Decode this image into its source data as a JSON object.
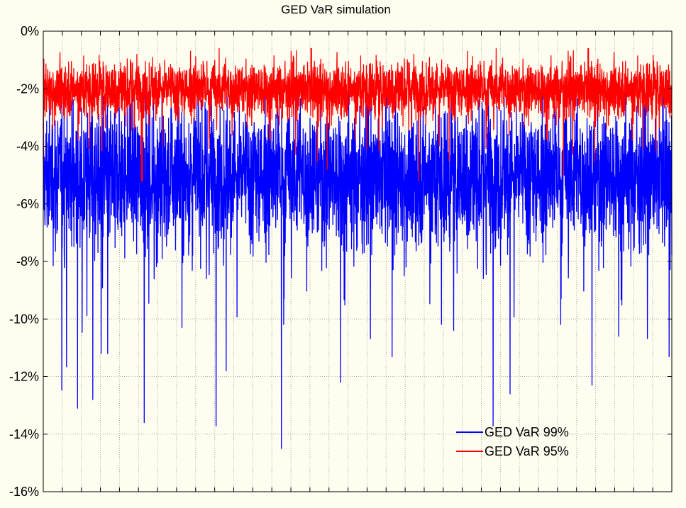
{
  "chart_data": {
    "type": "line",
    "title": "GED VaR simulation",
    "xlabel": "",
    "ylabel": "",
    "ylim": [
      -16,
      0
    ],
    "y_ticks": [
      0,
      -2,
      -4,
      -6,
      -8,
      -10,
      -12,
      -14,
      -16
    ],
    "y_tick_labels": [
      "0%",
      "-2%",
      "-4%",
      "-6%",
      "-8%",
      "-10%",
      "-12%",
      "-14%",
      "-16%"
    ],
    "x_range": [
      0,
      3300
    ],
    "x_tick_count": 33,
    "x_tick_labels_visible": false,
    "grid": true,
    "legend_position": "bottom-right",
    "series": [
      {
        "name": "GED VaR 99%",
        "color": "#0000ff",
        "stats": {
          "center": -5.0,
          "typical_band": [
            -7.0,
            -3.0
          ],
          "max": -2.1,
          "min": -14.5,
          "points": 3300
        },
        "notable_points": [
          [
            1250,
            -14.5
          ],
          [
            530,
            -13.6
          ],
          [
            180,
            -13.1
          ],
          [
            260,
            -12.8
          ],
          [
            2450,
            -12.6
          ],
          [
            2880,
            -12.3
          ],
          [
            1560,
            -12.2
          ],
          [
            960,
            -11.8
          ],
          [
            3020,
            -10.6
          ]
        ]
      },
      {
        "name": "GED VaR 95%",
        "color": "#ff0000",
        "stats": {
          "center": -2.0,
          "typical_band": [
            -2.8,
            -1.2
          ],
          "max": -0.6,
          "min": -5.2,
          "points": 3300
        },
        "notable_points": [
          [
            520,
            -5.2
          ],
          [
            2730,
            -5.0
          ],
          [
            1490,
            -4.8
          ],
          [
            0,
            -4.5
          ],
          [
            2130,
            -4.5
          ]
        ]
      }
    ]
  }
}
